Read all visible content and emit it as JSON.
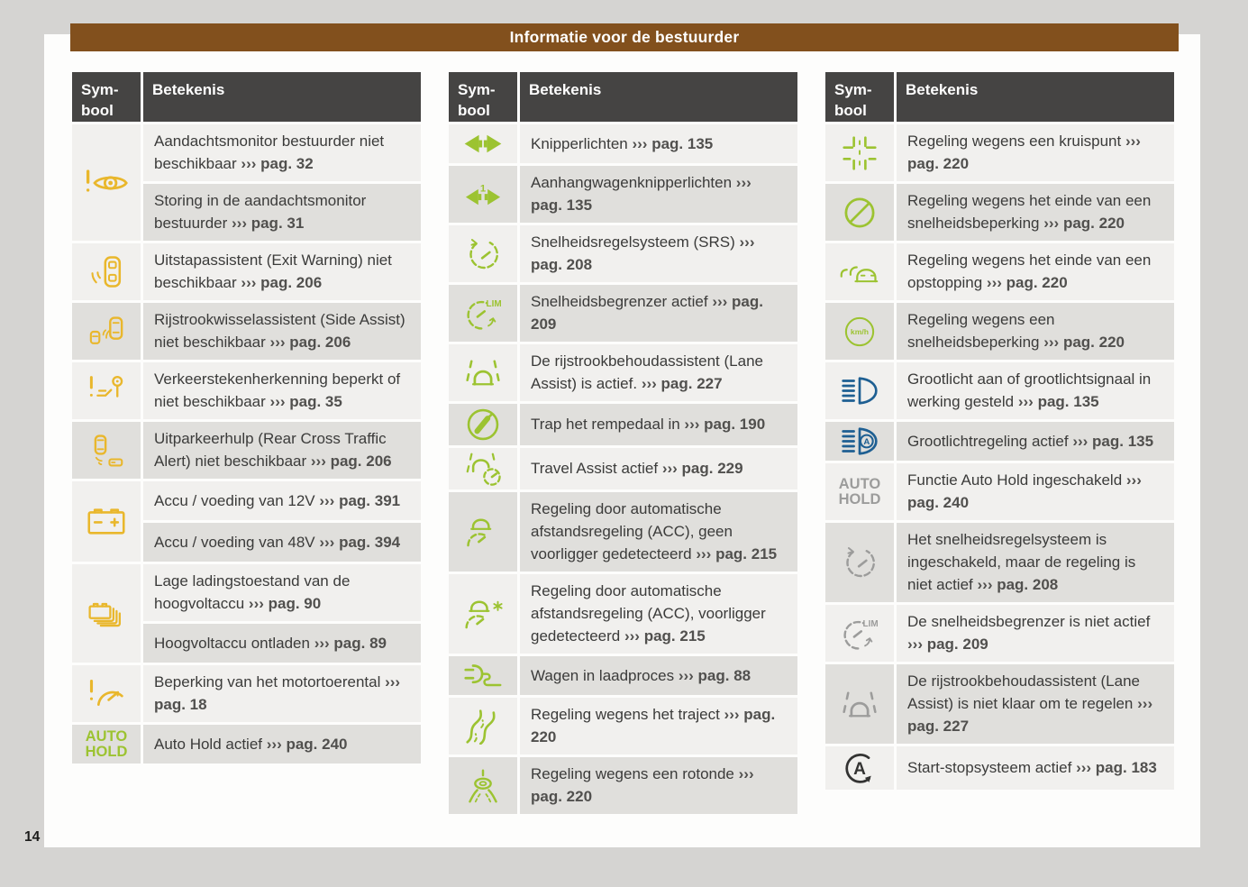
{
  "page": {
    "banner_title": "Informatie voor de bestuurder",
    "page_number": "14"
  },
  "colors": {
    "banner_brown": "#82501d",
    "warning_yellow": "#e9b72c",
    "indicator_green": "#9cc331",
    "indicator_blue": "#1e5f92",
    "indicator_gray": "#9c9c9b",
    "indicator_dark": "#333332",
    "header_dark": "#454443",
    "row_light": "#f1f0ee",
    "row_dark": "#e0dfdc"
  },
  "tables": [
    {
      "header": {
        "symbol": "Sym-\nbool",
        "meaning": "Betekenis"
      },
      "groups": [
        {
          "icon": "driver-attention-warning-icon",
          "tone": "yellow",
          "entries": [
            {
              "text": "Aandachtsmonitor bestuurder niet beschikbaar",
              "ref": "››› pag. 32"
            },
            {
              "text": "Storing in de aandachtsmonitor bestuurder",
              "ref": "››› pag. 31"
            }
          ]
        },
        {
          "icon": "exit-warning-icon",
          "tone": "yellow",
          "entries": [
            {
              "text": "Uitstapassistent (Exit Warning) niet beschikbaar",
              "ref": "››› pag. 206"
            }
          ]
        },
        {
          "icon": "side-assist-icon",
          "tone": "yellow",
          "entries": [
            {
              "text": "Rijstrookwisselassistent (Side Assist) niet beschikbaar",
              "ref": "››› pag. 206"
            }
          ]
        },
        {
          "icon": "traffic-sign-recognition-icon",
          "tone": "yellow",
          "entries": [
            {
              "text": "Verkeerstekenherkenning beperkt of niet beschikbaar",
              "ref": "››› pag. 35"
            }
          ]
        },
        {
          "icon": "rear-cross-traffic-icon",
          "tone": "yellow",
          "entries": [
            {
              "text": "Uitparkeerhulp (Rear Cross Traffic Alert) niet beschikbaar",
              "ref": "››› pag. 206"
            }
          ]
        },
        {
          "icon": "battery-icon",
          "tone": "yellow",
          "entries": [
            {
              "text": "Accu / voeding van 12V",
              "ref": "››› pag. 391"
            },
            {
              "text": "Accu / voeding van 48V",
              "ref": "››› pag. 394"
            }
          ]
        },
        {
          "icon": "high-voltage-battery-icon",
          "tone": "yellow",
          "entries": [
            {
              "text": "Lage ladingstoestand van de hoogvoltaccu",
              "ref": "››› pag. 90"
            },
            {
              "text": "Hoogvoltaccu ontladen",
              "ref": "››› pag. 89"
            }
          ]
        },
        {
          "icon": "engine-speed-limit-icon",
          "tone": "yellow",
          "entries": [
            {
              "text": "Beperking van het motortoerental",
              "ref": "››› pag. 18"
            }
          ]
        },
        {
          "icon": "auto-hold-icon",
          "tone": "green",
          "icon_text": [
            "AUTO",
            "HOLD"
          ],
          "entries": [
            {
              "text": "Auto Hold actief",
              "ref": "››› pag. 240"
            }
          ]
        }
      ]
    },
    {
      "header": {
        "symbol": "Sym-\nbool",
        "meaning": "Betekenis"
      },
      "groups": [
        {
          "icon": "turn-signals-icon",
          "tone": "green",
          "entries": [
            {
              "text": "Knipperlichten",
              "ref": "››› pag. 135"
            }
          ]
        },
        {
          "icon": "trailer-turn-signals-icon",
          "tone": "green",
          "entries": [
            {
              "text": "Aanhangwagenknipperlichten",
              "ref": "››› pag. 135"
            }
          ]
        },
        {
          "icon": "cruise-control-icon",
          "tone": "green",
          "entries": [
            {
              "text": "Snelheidsregelsysteem (SRS)",
              "ref": "››› pag. 208"
            }
          ]
        },
        {
          "icon": "speed-limiter-icon",
          "tone": "green",
          "entries": [
            {
              "text": "Snelheidsbegrenzer actief",
              "ref": "››› pag. 209"
            }
          ]
        },
        {
          "icon": "lane-assist-icon",
          "tone": "green",
          "entries": [
            {
              "text": "De rijstrookbehoudassistent (Lane Assist) is actief.",
              "ref": "››› pag. 227"
            }
          ]
        },
        {
          "icon": "brake-pedal-icon",
          "tone": "green",
          "entries": [
            {
              "text": "Trap het rempedaal in",
              "ref": "››› pag. 190"
            }
          ]
        },
        {
          "icon": "travel-assist-icon",
          "tone": "green",
          "entries": [
            {
              "text": "Travel Assist actief",
              "ref": "››› pag. 229"
            }
          ]
        },
        {
          "icon": "acc-no-vehicle-icon",
          "tone": "green",
          "entries": [
            {
              "text": "Regeling door automatische afstandsregeling (ACC), geen voorligger gedetecteerd",
              "ref": "››› pag. 215"
            }
          ]
        },
        {
          "icon": "acc-vehicle-detected-icon",
          "tone": "green",
          "entries": [
            {
              "text": "Regeling door automatische afstandsregeling (ACC), voorligger gedetecteerd",
              "ref": "››› pag. 215"
            }
          ]
        },
        {
          "icon": "charging-plug-icon",
          "tone": "green",
          "entries": [
            {
              "text": "Wagen in laadproces",
              "ref": "››› pag. 88"
            }
          ]
        },
        {
          "icon": "route-curves-icon",
          "tone": "green",
          "entries": [
            {
              "text": "Regeling wegens het traject",
              "ref": "››› pag. 220"
            }
          ]
        },
        {
          "icon": "roundabout-icon",
          "tone": "green",
          "entries": [
            {
              "text": "Regeling wegens een rotonde",
              "ref": "››› pag. 220"
            }
          ]
        }
      ]
    },
    {
      "header": {
        "symbol": "Sym-\nbool",
        "meaning": "Betekenis"
      },
      "groups": [
        {
          "icon": "intersection-icon",
          "tone": "green",
          "entries": [
            {
              "text": "Regeling wegens een kruispunt",
              "ref": "››› pag. 220"
            }
          ]
        },
        {
          "icon": "end-of-speed-limit-icon",
          "tone": "green",
          "entries": [
            {
              "text": "Regeling wegens het einde van een snelheidsbeperking",
              "ref": "››› pag. 220"
            }
          ]
        },
        {
          "icon": "end-of-traffic-jam-icon",
          "tone": "green",
          "entries": [
            {
              "text": "Regeling wegens het einde van een opstopping",
              "ref": "››› pag. 220"
            }
          ]
        },
        {
          "icon": "speed-limit-kmh-icon",
          "tone": "green",
          "entries": [
            {
              "text": "Regeling wegens een snelheidsbeperking",
              "ref": "››› pag. 220"
            }
          ]
        },
        {
          "icon": "high-beam-icon",
          "tone": "blue",
          "entries": [
            {
              "text": "Grootlicht aan of grootlichtsignaal in werking gesteld",
              "ref": "››› pag. 135"
            }
          ]
        },
        {
          "icon": "high-beam-auto-icon",
          "tone": "blue",
          "entries": [
            {
              "text": "Grootlichtregeling actief",
              "ref": "››› pag. 135"
            }
          ]
        },
        {
          "icon": "auto-hold-icon",
          "tone": "gray",
          "icon_text": [
            "AUTO",
            "HOLD"
          ],
          "entries": [
            {
              "text": "Functie Auto Hold ingeschakeld",
              "ref": "››› pag. 240"
            }
          ]
        },
        {
          "icon": "cruise-control-icon",
          "tone": "gray",
          "entries": [
            {
              "text": "Het snelheidsregelsysteem is ingeschakeld, maar de regeling is niet actief",
              "ref": "››› pag. 208"
            }
          ]
        },
        {
          "icon": "speed-limiter-icon",
          "tone": "gray",
          "entries": [
            {
              "text": "De snelheidsbegrenzer is niet actief",
              "ref": "››› pag. 209"
            }
          ]
        },
        {
          "icon": "lane-assist-icon",
          "tone": "gray",
          "entries": [
            {
              "text": "De rijstrookbehoudassistent (Lane Assist) is niet klaar om te regelen",
              "ref": "››› pag. 227"
            }
          ]
        },
        {
          "icon": "start-stop-system-icon",
          "tone": "dark",
          "entries": [
            {
              "text": "Start-stopsysteem actief",
              "ref": "››› pag. 183"
            }
          ]
        }
      ]
    }
  ]
}
